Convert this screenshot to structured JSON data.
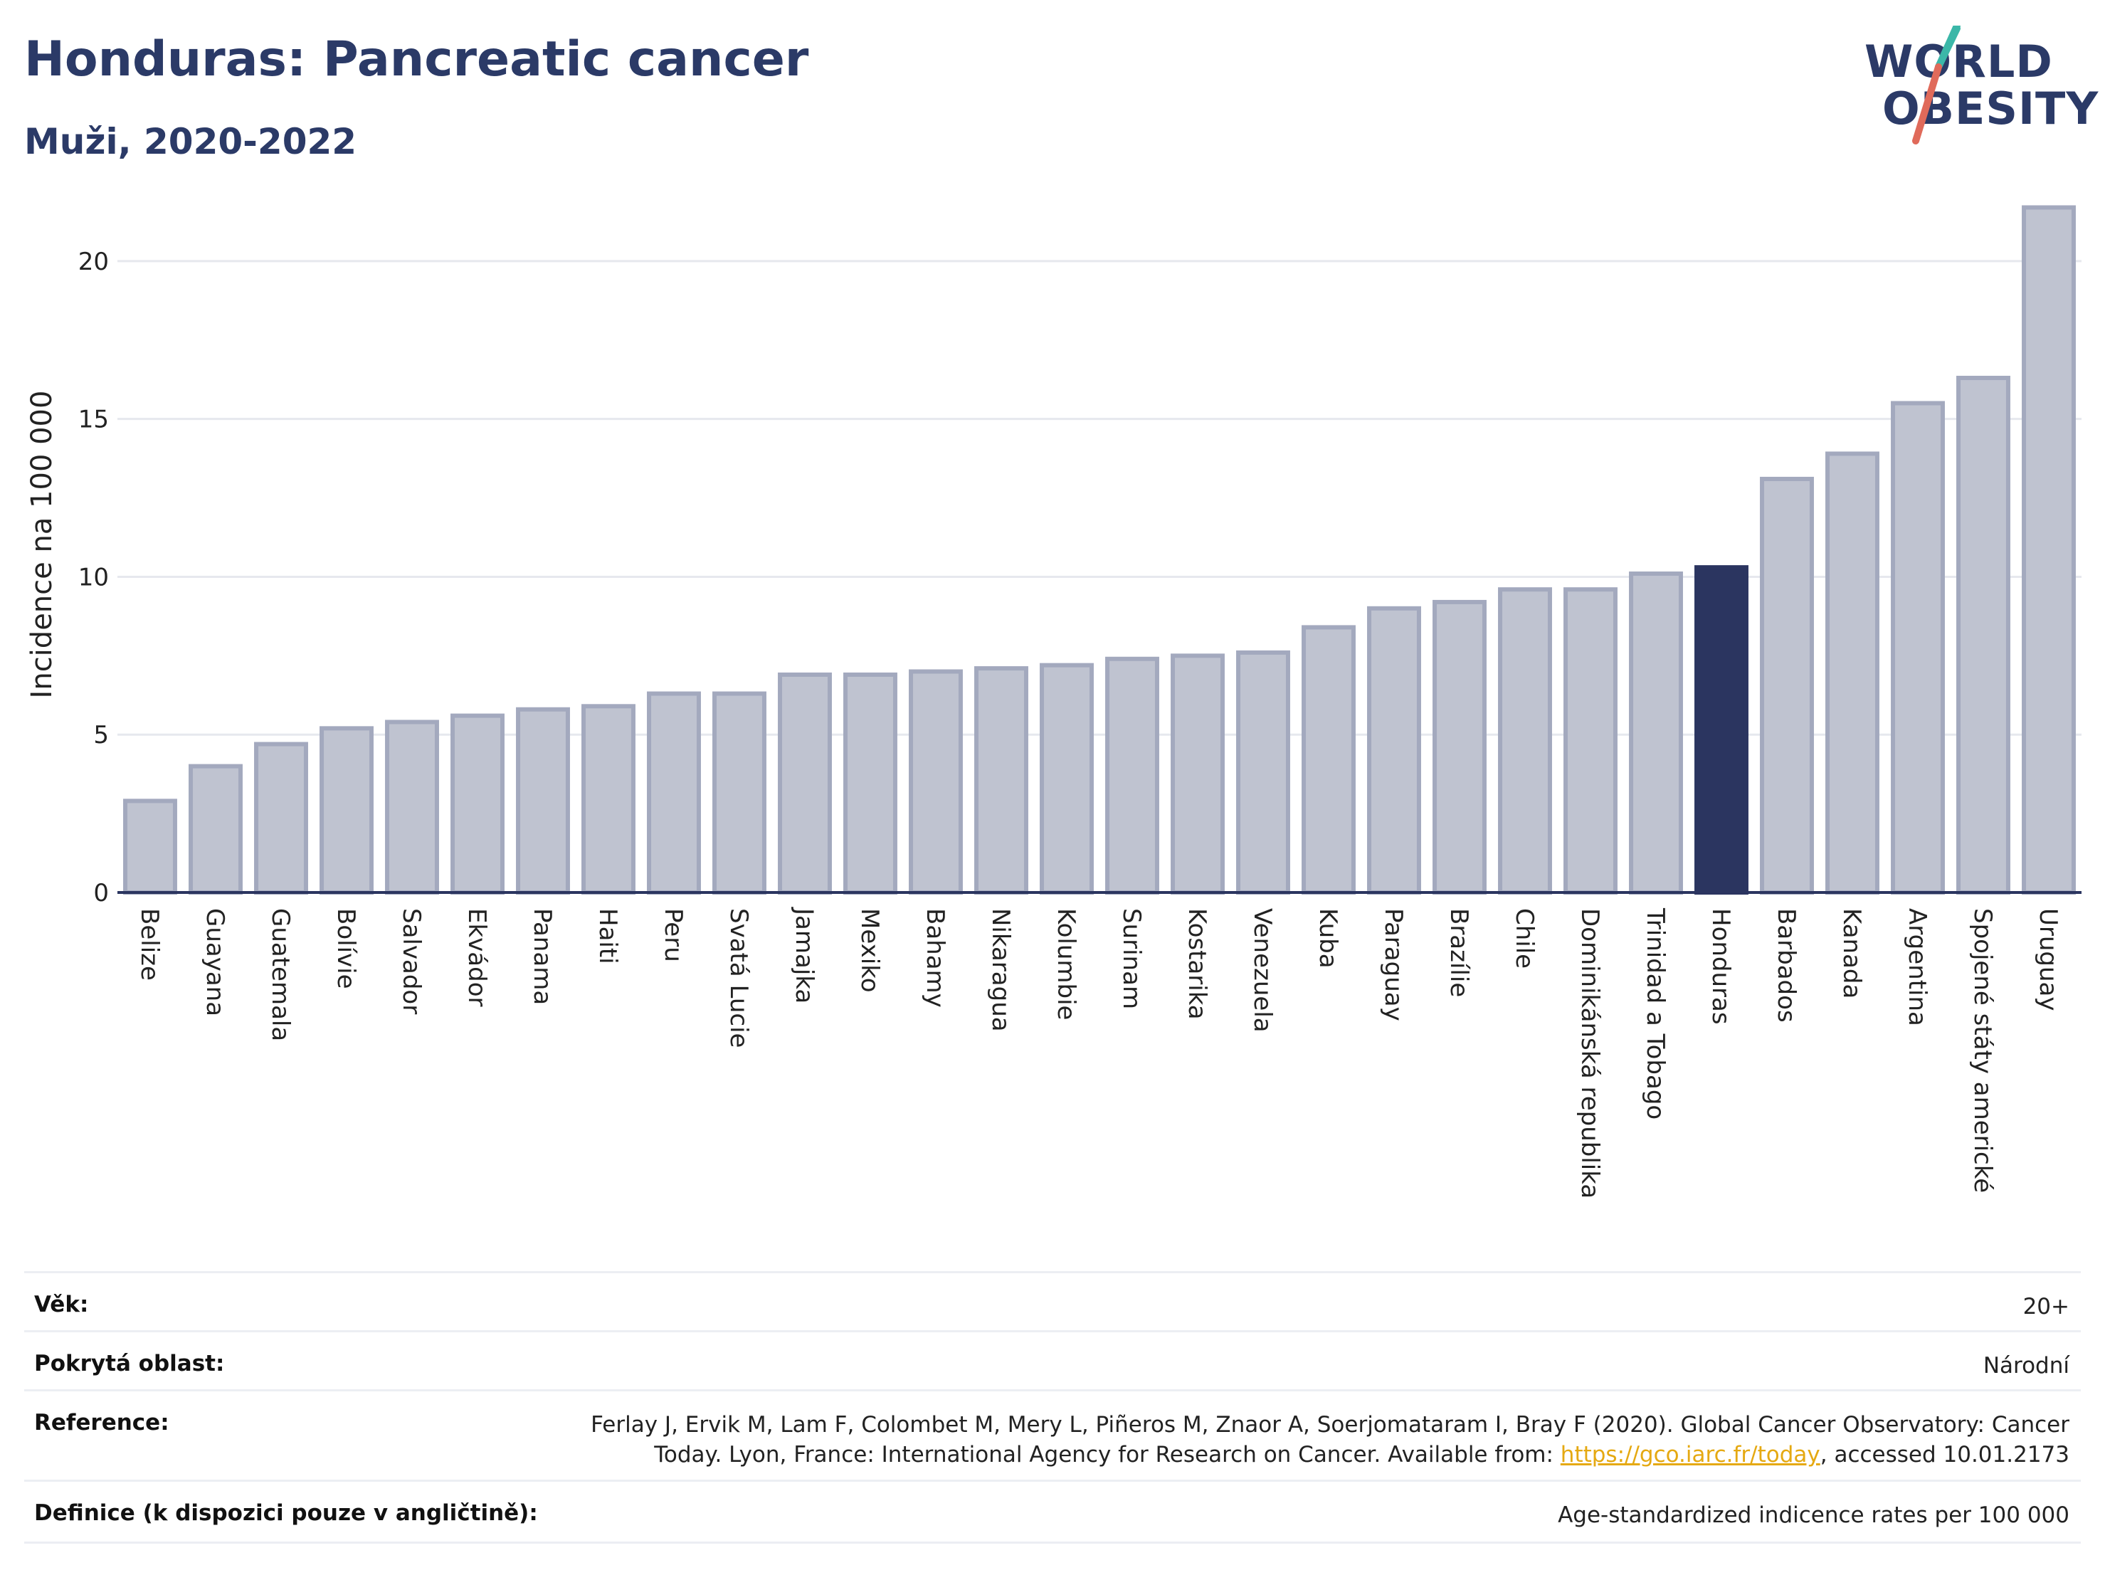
{
  "header": {
    "title": "Honduras: Pancreatic cancer",
    "subtitle": "Muži, 2020-2022"
  },
  "logo": {
    "line1": "WORLD",
    "line2": "OBESITY"
  },
  "colors": {
    "bar": "#bfc3d0",
    "bar_border": "#a3a9be",
    "highlight": "#2b3560",
    "grid": "#e6e8ee",
    "axis": "#2b3560"
  },
  "chart_data": {
    "type": "bar",
    "ylabel": "Incidence na 100 000",
    "xlabel": "",
    "ylim": [
      0,
      22.5
    ],
    "yticks": [
      0,
      5,
      10,
      15,
      20
    ],
    "grid": true,
    "highlight": "Honduras",
    "categories": [
      "Belize",
      "Guayana",
      "Guatemala",
      "Bolívie",
      "Salvador",
      "Ekvádor",
      "Panama",
      "Haiti",
      "Peru",
      "Svatá Lucie",
      "Jamajka",
      "Mexiko",
      "Bahamy",
      "Nikaragua",
      "Kolumbie",
      "Surinam",
      "Kostarika",
      "Venezuela",
      "Kuba",
      "Paraguay",
      "Brazílie",
      "Chile",
      "Dominikánská republika",
      "Trinidad a Tobago",
      "Honduras",
      "Barbados",
      "Kanada",
      "Argentina",
      "Spojené státy americké",
      "Uruguay"
    ],
    "values": [
      2.9,
      4.0,
      4.7,
      5.2,
      5.4,
      5.6,
      5.8,
      5.9,
      6.3,
      6.3,
      6.9,
      6.9,
      7.0,
      7.1,
      7.2,
      7.4,
      7.5,
      7.6,
      8.4,
      9.0,
      9.2,
      9.6,
      9.6,
      10.1,
      10.3,
      13.1,
      13.9,
      15.5,
      16.3,
      21.7
    ]
  },
  "info": {
    "age_label": "Věk:",
    "age_value": "20+",
    "coverage_label": "Pokrytá oblast:",
    "coverage_value": "Národní",
    "reference_label": "Reference:",
    "reference_text_1": "Ferlay J, Ervik M, Lam F, Colombet M, Mery L, Piñeros M, Znaor A, Soerjomataram I, Bray F (2020). Global Cancer Observatory: Cancer",
    "reference_text_2": "Today. Lyon, France: International Agency for Research on Cancer. Available from: ",
    "reference_link": "https://gco.iarc.fr/today",
    "reference_text_3": ", accessed 10.01.2173",
    "definition_label": "Definice (k dispozici pouze v angličtině):",
    "definition_value": "Age-standardized indicence rates per 100 000"
  }
}
